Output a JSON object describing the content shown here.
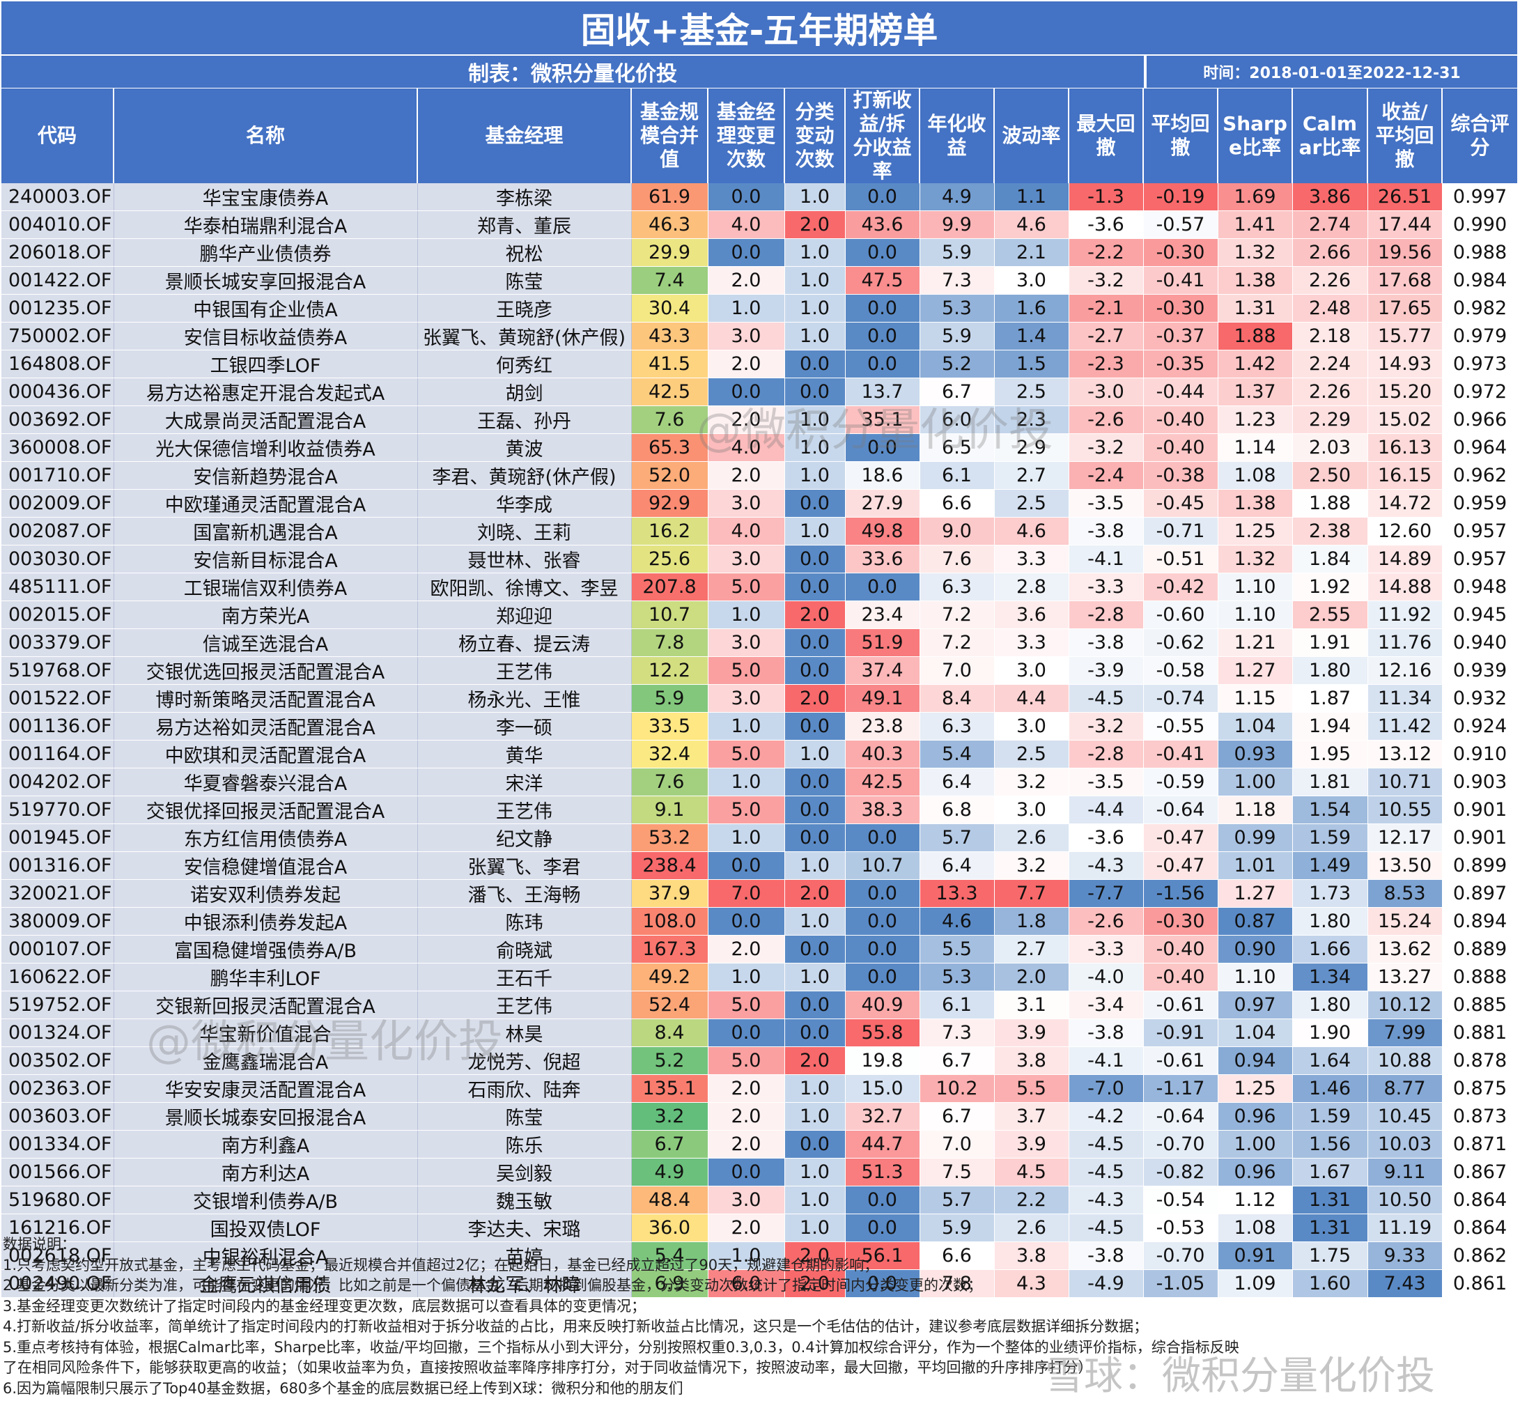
{
  "title": "固收+基金-五年期榜单",
  "maker": "制表：微积分量化价投",
  "period": "时间：2018-01-01至2022-12-31",
  "headers": [
    "代码",
    "名称",
    "基金经理",
    "基金规模合并值",
    "基金经理变更次数",
    "分类变动次数",
    "打新收益/拆分收益率",
    "年化收益",
    "波动率",
    "最大回撤",
    "平均回撤",
    "Sharpe比率",
    "Calmar比率",
    "收益/平均回撤",
    "综合评分"
  ],
  "rows": [
    [
      "240003.OF",
      "华宝宝康债券A",
      "李栋梁",
      "61.9",
      "0.0",
      "1.0",
      "0.0",
      "4.9",
      "1.1",
      "-1.3",
      "-0.19",
      "1.69",
      "3.86",
      "26.51",
      "0.997"
    ],
    [
      "004010.OF",
      "华泰柏瑞鼎利混合A",
      "郑青、董辰",
      "46.3",
      "4.0",
      "2.0",
      "43.6",
      "9.9",
      "4.6",
      "-3.6",
      "-0.57",
      "1.41",
      "2.74",
      "17.44",
      "0.990"
    ],
    [
      "206018.OF",
      "鹏华产业债债券",
      "祝松",
      "29.9",
      "0.0",
      "1.0",
      "0.0",
      "5.9",
      "2.1",
      "-2.2",
      "-0.30",
      "1.32",
      "2.66",
      "19.56",
      "0.988"
    ],
    [
      "001422.OF",
      "景顺长城安享回报混合A",
      "陈莹",
      "7.4",
      "2.0",
      "1.0",
      "47.5",
      "7.3",
      "3.0",
      "-3.2",
      "-0.41",
      "1.38",
      "2.26",
      "17.68",
      "0.984"
    ],
    [
      "001235.OF",
      "中银国有企业债A",
      "王晓彦",
      "30.4",
      "1.0",
      "1.0",
      "0.0",
      "5.3",
      "1.6",
      "-2.1",
      "-0.30",
      "1.31",
      "2.48",
      "17.65",
      "0.982"
    ],
    [
      "750002.OF",
      "安信目标收益债券A",
      "张翼飞、黄琬舒(休产假)",
      "43.3",
      "3.0",
      "1.0",
      "0.0",
      "5.9",
      "1.4",
      "-2.7",
      "-0.37",
      "1.88",
      "2.18",
      "15.77",
      "0.979"
    ],
    [
      "164808.OF",
      "工银四季LOF",
      "何秀红",
      "41.5",
      "2.0",
      "0.0",
      "0.0",
      "5.2",
      "1.5",
      "-2.3",
      "-0.35",
      "1.42",
      "2.24",
      "14.93",
      "0.973"
    ],
    [
      "000436.OF",
      "易方达裕惠定开混合发起式A",
      "胡剑",
      "42.5",
      "0.0",
      "0.0",
      "13.7",
      "6.7",
      "2.5",
      "-3.0",
      "-0.44",
      "1.37",
      "2.26",
      "15.20",
      "0.972"
    ],
    [
      "003692.OF",
      "大成景尚灵活配置混合A",
      "王磊、孙丹",
      "7.6",
      "2.0",
      "1.0",
      "35.1",
      "6.0",
      "2.3",
      "-2.6",
      "-0.40",
      "1.23",
      "2.29",
      "15.02",
      "0.966"
    ],
    [
      "360008.OF",
      "光大保德信增利收益债券A",
      "黄波",
      "65.3",
      "4.0",
      "1.0",
      "0.0",
      "6.5",
      "2.9",
      "-3.2",
      "-0.40",
      "1.14",
      "2.03",
      "16.13",
      "0.964"
    ],
    [
      "001710.OF",
      "安信新趋势混合A",
      "李君、黄琬舒(休产假)",
      "52.0",
      "2.0",
      "1.0",
      "18.6",
      "6.1",
      "2.7",
      "-2.4",
      "-0.38",
      "1.08",
      "2.50",
      "16.15",
      "0.962"
    ],
    [
      "002009.OF",
      "中欧瑾通灵活配置混合A",
      "华李成",
      "92.9",
      "3.0",
      "0.0",
      "27.9",
      "6.6",
      "2.5",
      "-3.5",
      "-0.45",
      "1.38",
      "1.88",
      "14.72",
      "0.959"
    ],
    [
      "002087.OF",
      "国富新机遇混合A",
      "刘晓、王莉",
      "16.2",
      "4.0",
      "1.0",
      "49.8",
      "9.0",
      "4.6",
      "-3.8",
      "-0.71",
      "1.25",
      "2.38",
      "12.60",
      "0.957"
    ],
    [
      "003030.OF",
      "安信新目标混合A",
      "聂世林、张睿",
      "25.6",
      "3.0",
      "0.0",
      "33.6",
      "7.6",
      "3.3",
      "-4.1",
      "-0.51",
      "1.32",
      "1.84",
      "14.89",
      "0.957"
    ],
    [
      "485111.OF",
      "工银瑞信双利债券A",
      "欧阳凯、徐博文、李昱",
      "207.8",
      "5.0",
      "0.0",
      "0.0",
      "6.3",
      "2.8",
      "-3.3",
      "-0.42",
      "1.10",
      "1.92",
      "14.88",
      "0.948"
    ],
    [
      "002015.OF",
      "南方荣光A",
      "郑迎迎",
      "10.7",
      "1.0",
      "2.0",
      "23.4",
      "7.2",
      "3.6",
      "-2.8",
      "-0.60",
      "1.10",
      "2.55",
      "11.92",
      "0.945"
    ],
    [
      "003379.OF",
      "信诚至选混合A",
      "杨立春、提云涛",
      "7.8",
      "3.0",
      "0.0",
      "51.9",
      "7.2",
      "3.3",
      "-3.8",
      "-0.62",
      "1.21",
      "1.91",
      "11.76",
      "0.940"
    ],
    [
      "519768.OF",
      "交银优选回报灵活配置混合A",
      "王艺伟",
      "12.2",
      "5.0",
      "0.0",
      "37.4",
      "7.0",
      "3.0",
      "-3.9",
      "-0.58",
      "1.27",
      "1.80",
      "12.16",
      "0.939"
    ],
    [
      "001522.OF",
      "博时新策略灵活配置混合A",
      "杨永光、王惟",
      "5.9",
      "3.0",
      "2.0",
      "49.1",
      "8.4",
      "4.4",
      "-4.5",
      "-0.74",
      "1.15",
      "1.87",
      "11.34",
      "0.932"
    ],
    [
      "001136.OF",
      "易方达裕如灵活配置混合A",
      "李一硕",
      "33.5",
      "1.0",
      "0.0",
      "23.8",
      "6.3",
      "3.0",
      "-3.2",
      "-0.55",
      "1.04",
      "1.94",
      "11.42",
      "0.924"
    ],
    [
      "001164.OF",
      "中欧琪和灵活配置混合A",
      "黄华",
      "32.4",
      "5.0",
      "1.0",
      "40.3",
      "5.4",
      "2.5",
      "-2.8",
      "-0.41",
      "0.93",
      "1.95",
      "13.12",
      "0.910"
    ],
    [
      "004202.OF",
      "华夏睿磐泰兴混合A",
      "宋洋",
      "7.6",
      "1.0",
      "0.0",
      "42.5",
      "6.4",
      "3.2",
      "-3.5",
      "-0.59",
      "1.00",
      "1.81",
      "10.71",
      "0.903"
    ],
    [
      "519770.OF",
      "交银优择回报灵活配置混合A",
      "王艺伟",
      "9.1",
      "5.0",
      "0.0",
      "38.3",
      "6.8",
      "3.0",
      "-4.4",
      "-0.64",
      "1.18",
      "1.54",
      "10.55",
      "0.901"
    ],
    [
      "001945.OF",
      "东方红信用债债券A",
      "纪文静",
      "53.2",
      "1.0",
      "0.0",
      "0.0",
      "5.7",
      "2.6",
      "-3.6",
      "-0.47",
      "0.99",
      "1.59",
      "12.17",
      "0.901"
    ],
    [
      "001316.OF",
      "安信稳健增值混合A",
      "张翼飞、李君",
      "238.4",
      "0.0",
      "1.0",
      "10.7",
      "6.4",
      "3.2",
      "-4.3",
      "-0.47",
      "1.01",
      "1.49",
      "13.50",
      "0.899"
    ],
    [
      "320021.OF",
      "诺安双利债券发起",
      "潘飞、王海畅",
      "37.9",
      "7.0",
      "2.0",
      "0.0",
      "13.3",
      "7.7",
      "-7.7",
      "-1.56",
      "1.27",
      "1.73",
      "8.53",
      "0.897"
    ],
    [
      "380009.OF",
      "中银添利债券发起A",
      "陈玮",
      "108.0",
      "0.0",
      "1.0",
      "0.0",
      "4.6",
      "1.8",
      "-2.6",
      "-0.30",
      "0.87",
      "1.80",
      "15.24",
      "0.894"
    ],
    [
      "000107.OF",
      "富国稳健增强债券A/B",
      "俞晓斌",
      "167.3",
      "2.0",
      "0.0",
      "0.0",
      "5.5",
      "2.7",
      "-3.3",
      "-0.40",
      "0.90",
      "1.66",
      "13.62",
      "0.889"
    ],
    [
      "160622.OF",
      "鹏华丰利LOF",
      "王石千",
      "49.2",
      "1.0",
      "1.0",
      "0.0",
      "5.3",
      "2.0",
      "-4.0",
      "-0.40",
      "1.10",
      "1.34",
      "13.27",
      "0.888"
    ],
    [
      "519752.OF",
      "交银新回报灵活配置混合A",
      "王艺伟",
      "52.4",
      "5.0",
      "0.0",
      "40.9",
      "6.1",
      "3.1",
      "-3.4",
      "-0.61",
      "0.97",
      "1.80",
      "10.12",
      "0.885"
    ],
    [
      "001324.OF",
      "华宝新价值混合",
      "林昊",
      "8.4",
      "0.0",
      "0.0",
      "55.8",
      "7.3",
      "3.9",
      "-3.8",
      "-0.91",
      "1.04",
      "1.90",
      "7.99",
      "0.881"
    ],
    [
      "003502.OF",
      "金鹰鑫瑞混合A",
      "龙悦芳、倪超",
      "5.2",
      "5.0",
      "2.0",
      "19.8",
      "6.7",
      "3.8",
      "-4.1",
      "-0.61",
      "0.94",
      "1.64",
      "10.88",
      "0.878"
    ],
    [
      "002363.OF",
      "华安安康灵活配置混合A",
      "石雨欣、陆奔",
      "135.1",
      "2.0",
      "1.0",
      "15.0",
      "10.2",
      "5.5",
      "-7.0",
      "-1.17",
      "1.25",
      "1.46",
      "8.77",
      "0.875"
    ],
    [
      "003603.OF",
      "景顺长城泰安回报混合A",
      "陈莹",
      "3.2",
      "2.0",
      "1.0",
      "32.7",
      "6.7",
      "3.7",
      "-4.2",
      "-0.64",
      "0.96",
      "1.59",
      "10.45",
      "0.873"
    ],
    [
      "001334.OF",
      "南方利鑫A",
      "陈乐",
      "6.7",
      "2.0",
      "0.0",
      "44.7",
      "7.0",
      "3.9",
      "-4.5",
      "-0.70",
      "1.00",
      "1.56",
      "10.03",
      "0.871"
    ],
    [
      "001566.OF",
      "南方利达A",
      "吴剑毅",
      "4.9",
      "0.0",
      "1.0",
      "51.3",
      "7.5",
      "4.5",
      "-4.5",
      "-0.82",
      "0.96",
      "1.67",
      "9.11",
      "0.867"
    ],
    [
      "519680.OF",
      "交银增利债券A/B",
      "魏玉敏",
      "48.4",
      "3.0",
      "1.0",
      "0.0",
      "5.7",
      "2.2",
      "-4.3",
      "-0.54",
      "1.12",
      "1.31",
      "10.50",
      "0.864"
    ],
    [
      "161216.OF",
      "国投双债LOF",
      "李达夫、宋璐",
      "36.0",
      "2.0",
      "1.0",
      "0.0",
      "5.9",
      "2.6",
      "-4.5",
      "-0.53",
      "1.08",
      "1.31",
      "11.19",
      "0.864"
    ],
    [
      "002618.OF",
      "中银裕利混合A",
      "苗婷",
      "5.4",
      "1.0",
      "2.0",
      "56.1",
      "6.6",
      "3.8",
      "-3.8",
      "-0.70",
      "0.91",
      "1.75",
      "9.33",
      "0.862"
    ],
    [
      "002490.OF",
      "金鹰元祺信用债",
      "林龙军、林暐",
      "6.9",
      "6.0",
      "2.0",
      "0.0",
      "7.8",
      "4.3",
      "-4.9",
      "-1.05",
      "1.09",
      "1.60",
      "7.43",
      "0.861"
    ]
  ],
  "notes": [
    "数据说明：",
    "1.只考虑契约型开放式基金，主考虑主代码基金；最近规模合并值超过2亿；在起始日，基金已经成立超过了90天，规避建仓期的影响；",
    "2.基金分类以最新分类为准，可能存在变更的情况，比如之前是一个偏债基金，后期切换到偏股基金，分类变动次数统计了指定时间内分类变更的次数；",
    "3.基金经理变更次数统计了指定时间段内的基金经理变更次数，底层数据可以查看具体的变更情况；",
    "4.打新收益/拆分收益率，简单统计了指定时间段内的打新收益相对于拆分收益的占比，用来反映打新收益占比情况，这只是一个毛估估的估计，建议参考底层数据详细拆分数据；",
    "5.重点考核持有体验，根据Calmar比率，Sharpe比率，收益/平均回撤，三个指标从小到大评分，分别按照权重0.3,0.3，0.4计算加权综合评分，作为一个整体的业绩评价指标，综合指标反映",
    "了在相同风险条件下，能够获取更高的收益；（如果收益率为负，直接按照收益率降序排序打分，对于同收益情况下，按照波动率，最大回撤，平均回撤的升序排序打分）",
    "6.因为篇幅限制只展示了Top40基金数据，680多个基金的底层数据已经上传到X球：微积分和他的朋友们"
  ],
  "watermarks": [
    "@微积分量化价投",
    "@微积分量化价投",
    "雪球：微积分量化价投"
  ],
  "colors": {
    "header_bg": "#4472C4",
    "name_bg": "#D9DEEB",
    "high_red": "#F8696B",
    "low_blue": "#5A8AC6",
    "scale_green": "#63BE7B",
    "scale_yellow": "#FFEB84"
  }
}
